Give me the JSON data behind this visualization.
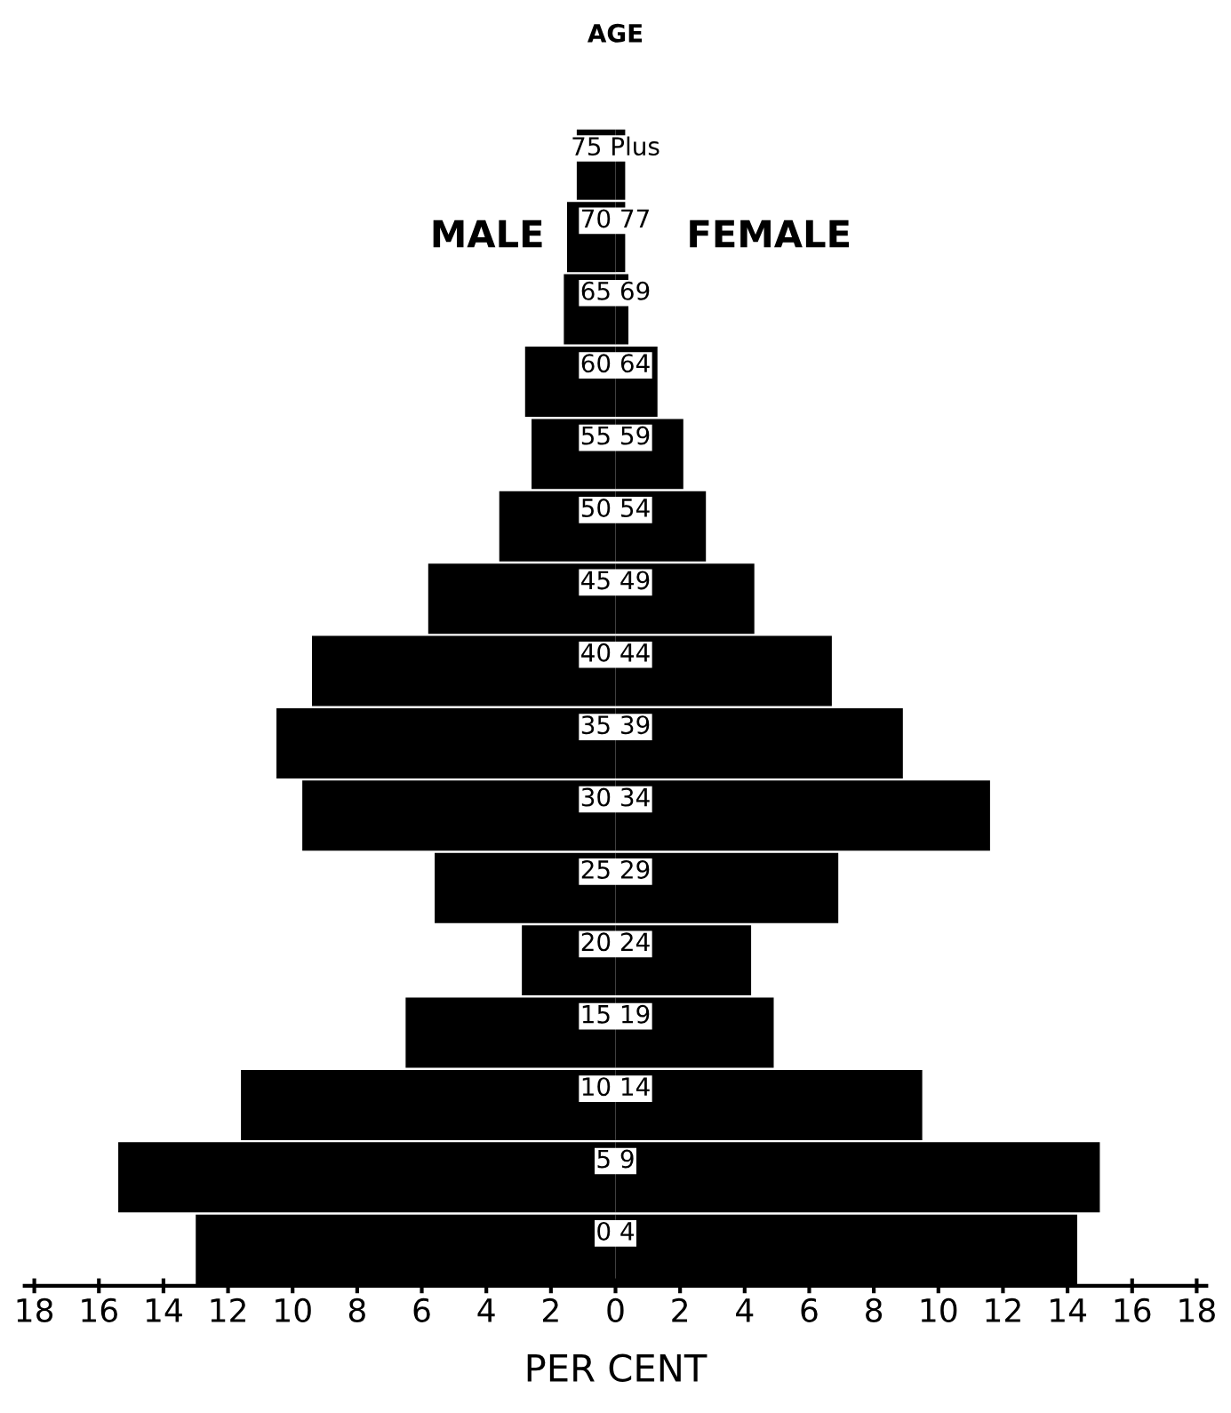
{
  "chart_data": {
    "type": "bar",
    "orientation": "horizontal",
    "title": "AGE",
    "xlabel": "PER CENT",
    "categories": [
      "75 Plus",
      "70 77",
      "65 69",
      "60 64",
      "55 59",
      "50 54",
      "45 49",
      "40 44",
      "35 39",
      "30 34",
      "25 29",
      "20 24",
      "15 19",
      "10 14",
      "5 9",
      "0 4"
    ],
    "series": [
      {
        "name": "MALE",
        "color": "#000000",
        "values": [
          -1.2,
          -1.5,
          -1.6,
          -2.8,
          -2.6,
          -3.6,
          -5.8,
          -9.4,
          -10.5,
          -9.7,
          -5.6,
          -2.9,
          -6.5,
          -11.6,
          -15.4,
          -13.0
        ]
      },
      {
        "name": "FEMALE",
        "color": "#000000",
        "values": [
          0.3,
          0.3,
          0.4,
          1.3,
          2.1,
          2.8,
          4.3,
          6.7,
          8.9,
          11.6,
          6.9,
          4.2,
          4.9,
          9.5,
          15.0,
          14.3
        ]
      }
    ],
    "xlim": [
      -18.3,
      18.3
    ],
    "xticks": [
      {
        "value": -18,
        "label": "18"
      },
      {
        "value": -16,
        "label": "16"
      },
      {
        "value": -14,
        "label": "14"
      },
      {
        "value": -12,
        "label": "12"
      },
      {
        "value": -10,
        "label": "10"
      },
      {
        "value": -8,
        "label": "8"
      },
      {
        "value": -6,
        "label": "6"
      },
      {
        "value": -4,
        "label": "4"
      },
      {
        "value": -2,
        "label": "2"
      },
      0,
      2,
      4,
      6,
      8,
      10,
      12,
      14,
      16,
      18
    ],
    "stacked": true,
    "grid": false,
    "legend": false
  }
}
